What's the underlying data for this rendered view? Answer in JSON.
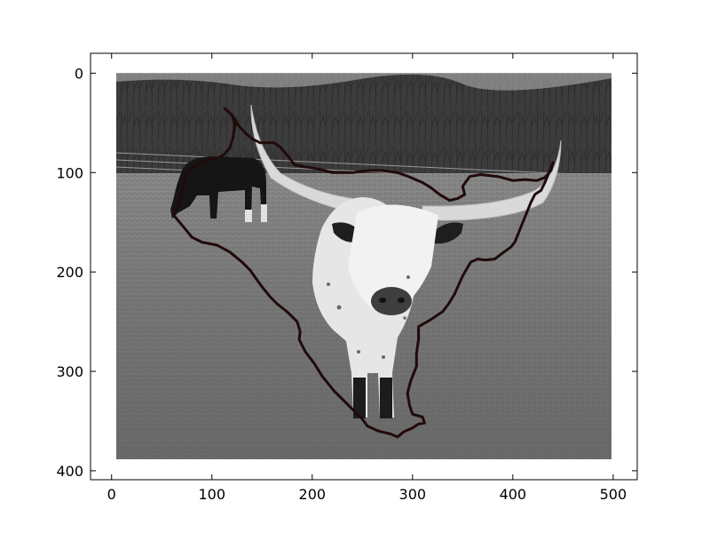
{
  "figure": {
    "x_ticks": [
      0,
      100,
      200,
      300,
      400,
      500
    ],
    "y_ticks": [
      0,
      100,
      200,
      300,
      400
    ],
    "x_limits": [
      -21,
      524
    ],
    "y_limits": [
      409,
      -20
    ],
    "image_extent": {
      "x": [
        0,
        500
      ],
      "y": [
        0,
        389
      ]
    }
  },
  "photo": {
    "subject": "longhorn-steer",
    "background_subject": "black-cow",
    "scene": "grass pasture with bare trees and a wire fence",
    "tone": "grayscale"
  },
  "overlay": {
    "kind": "segmentation-outline",
    "color": "#200a0a",
    "polygon": [
      [
        112,
        35
      ],
      [
        120,
        42
      ],
      [
        123,
        52
      ],
      [
        121,
        65
      ],
      [
        118,
        75
      ],
      [
        112,
        82
      ],
      [
        105,
        86
      ],
      [
        92,
        88
      ],
      [
        82,
        94
      ],
      [
        75,
        100
      ],
      [
        72,
        110
      ],
      [
        70,
        120
      ],
      [
        68,
        130
      ],
      [
        62,
        143
      ],
      [
        72,
        155
      ],
      [
        80,
        165
      ],
      [
        90,
        170
      ],
      [
        105,
        173
      ],
      [
        118,
        180
      ],
      [
        130,
        190
      ],
      [
        138,
        198
      ],
      [
        145,
        208
      ],
      [
        150,
        215
      ],
      [
        158,
        225
      ],
      [
        165,
        232
      ],
      [
        175,
        240
      ],
      [
        185,
        250
      ],
      [
        188,
        260
      ],
      [
        187,
        268
      ],
      [
        193,
        280
      ],
      [
        202,
        292
      ],
      [
        210,
        305
      ],
      [
        222,
        320
      ],
      [
        235,
        333
      ],
      [
        244,
        342
      ],
      [
        250,
        348
      ],
      [
        255,
        355
      ],
      [
        266,
        360
      ],
      [
        278,
        363
      ],
      [
        285,
        366
      ],
      [
        291,
        361
      ],
      [
        300,
        357
      ],
      [
        306,
        353
      ],
      [
        312,
        352
      ],
      [
        310,
        346
      ],
      [
        300,
        343
      ],
      [
        297,
        334
      ],
      [
        295,
        322
      ],
      [
        298,
        310
      ],
      [
        304,
        295
      ],
      [
        304,
        282
      ],
      [
        306,
        268
      ],
      [
        306,
        255
      ],
      [
        318,
        248
      ],
      [
        330,
        240
      ],
      [
        336,
        232
      ],
      [
        342,
        222
      ],
      [
        346,
        213
      ],
      [
        350,
        204
      ],
      [
        358,
        190
      ],
      [
        365,
        187
      ],
      [
        372,
        188
      ],
      [
        382,
        187
      ],
      [
        391,
        180
      ],
      [
        398,
        175
      ],
      [
        402,
        170
      ],
      [
        406,
        160
      ],
      [
        410,
        150
      ],
      [
        414,
        140
      ],
      [
        418,
        130
      ],
      [
        422,
        122
      ],
      [
        428,
        118
      ],
      [
        432,
        110
      ],
      [
        438,
        95
      ],
      [
        440,
        90
      ],
      [
        438,
        98
      ],
      [
        432,
        105
      ],
      [
        424,
        108
      ],
      [
        412,
        107
      ],
      [
        400,
        108
      ],
      [
        385,
        104
      ],
      [
        368,
        102
      ],
      [
        357,
        104
      ],
      [
        350,
        114
      ],
      [
        352,
        122
      ],
      [
        345,
        126
      ],
      [
        337,
        128
      ],
      [
        327,
        122
      ],
      [
        318,
        115
      ],
      [
        310,
        110
      ],
      [
        296,
        104
      ],
      [
        285,
        100
      ],
      [
        270,
        98
      ],
      [
        255,
        98
      ],
      [
        240,
        100
      ],
      [
        220,
        100
      ],
      [
        205,
        96
      ],
      [
        192,
        94
      ],
      [
        182,
        92
      ],
      [
        178,
        86
      ],
      [
        173,
        80
      ],
      [
        168,
        74
      ],
      [
        162,
        70
      ],
      [
        155,
        70
      ],
      [
        148,
        70
      ],
      [
        140,
        66
      ],
      [
        133,
        60
      ],
      [
        126,
        52
      ],
      [
        122,
        45
      ],
      [
        118,
        40
      ],
      [
        112,
        35
      ]
    ]
  }
}
